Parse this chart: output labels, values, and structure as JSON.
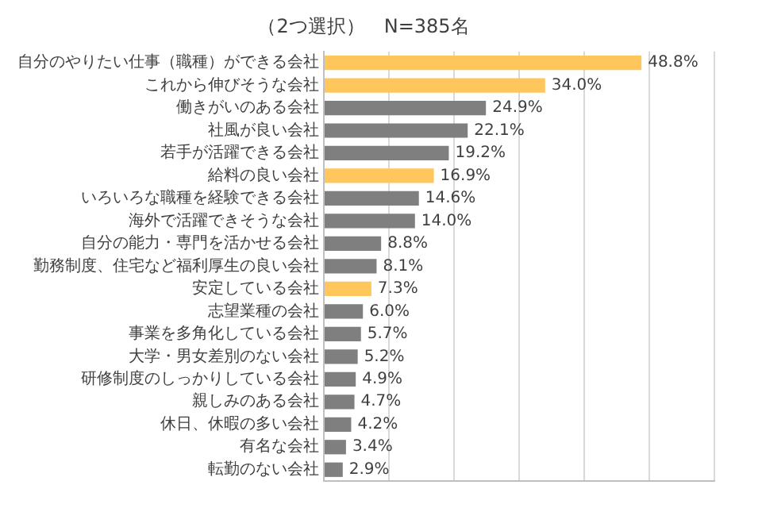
{
  "chart_data": {
    "type": "bar",
    "orientation": "horizontal",
    "title": "（2つ選択）　N=385名",
    "categories": [
      "自分のやりたい仕事（職種）ができる会社",
      "これから伸びそうな会社",
      "働きがいのある会社",
      "社風が良い会社",
      "若手が活躍できる会社",
      "給料の良い会社",
      "いろいろな職種を経験できる会社",
      "海外で活躍できそうな会社",
      "自分の能力・専門を活かせる会社",
      "勤務制度、住宅など福利厚生の良い会社",
      "安定している会社",
      "志望業種の会社",
      "事業を多角化している会社",
      "大学・男女差別のない会社",
      "研修制度のしっかりしている会社",
      "親しみのある会社",
      "休日、休暇の多い会社",
      "有名な会社",
      "転勤のない会社"
    ],
    "values": [
      48.8,
      34.0,
      24.9,
      22.1,
      19.2,
      16.9,
      14.6,
      14.0,
      8.8,
      8.1,
      7.3,
      6.0,
      5.7,
      5.2,
      4.9,
      4.7,
      4.2,
      3.4,
      2.9
    ],
    "value_labels": [
      "48.8%",
      "34.0%",
      "24.9%",
      "22.1%",
      "19.2%",
      "16.9%",
      "14.6%",
      "14.0%",
      "8.8%",
      "8.1%",
      "7.3%",
      "6.0%",
      "5.7%",
      "5.2%",
      "4.9%",
      "4.7%",
      "4.2%",
      "3.4%",
      "2.9%"
    ],
    "colors": [
      "#ffc65c",
      "#ffc65c",
      "#7f7f7f",
      "#7f7f7f",
      "#7f7f7f",
      "#ffc65c",
      "#7f7f7f",
      "#7f7f7f",
      "#7f7f7f",
      "#7f7f7f",
      "#ffc65c",
      "#7f7f7f",
      "#7f7f7f",
      "#7f7f7f",
      "#7f7f7f",
      "#7f7f7f",
      "#7f7f7f",
      "#7f7f7f",
      "#7f7f7f"
    ],
    "xlim": [
      0,
      60
    ],
    "xticks": [
      {
        "value": 0,
        "label": null
      },
      {
        "value": 10,
        "label": null
      },
      {
        "value": 20,
        "label": null
      },
      {
        "value": 30,
        "label": null
      },
      {
        "value": 40,
        "label": null
      },
      {
        "value": 50,
        "label": null
      },
      {
        "value": 60,
        "label": null
      }
    ],
    "grid": "x",
    "tick_labels": "y",
    "legend": false
  }
}
